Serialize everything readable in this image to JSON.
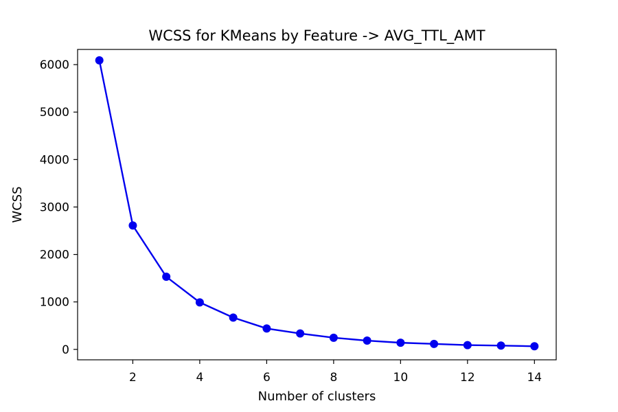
{
  "chart_data": {
    "type": "line",
    "title": "WCSS for KMeans by Feature -> AVG_TTL_AMT",
    "xlabel": "Number of clusters",
    "ylabel": "WCSS",
    "xlim": [
      0.35,
      14.65
    ],
    "ylim": [
      -220,
      6320
    ],
    "xticks": [
      2,
      4,
      6,
      8,
      10,
      12,
      14
    ],
    "yticks": [
      0,
      1000,
      2000,
      3000,
      4000,
      5000,
      6000
    ],
    "grid": false,
    "colors": {
      "line": "#0000ee",
      "marker": "#0000ee"
    },
    "marker": "circle",
    "series": [
      {
        "x": [
          1,
          2,
          3,
          4,
          5,
          6,
          7,
          8,
          9,
          10,
          11,
          12,
          13,
          14
        ],
        "values": [
          6090,
          2610,
          1530,
          990,
          670,
          440,
          335,
          245,
          185,
          140,
          115,
          90,
          80,
          65
        ]
      }
    ]
  }
}
